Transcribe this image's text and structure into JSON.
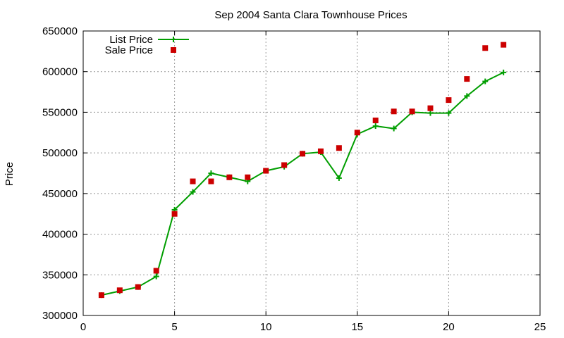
{
  "chart_data": {
    "type": "line",
    "title": "Sep 2004 Santa Clara Townhouse Prices",
    "xlabel": "",
    "ylabel": "Price",
    "xlim": [
      0,
      25
    ],
    "ylim": [
      300000,
      650000
    ],
    "x_ticks": [
      0,
      5,
      10,
      15,
      20,
      25
    ],
    "y_ticks": [
      300000,
      350000,
      400000,
      450000,
      500000,
      550000,
      600000,
      650000
    ],
    "grid": true,
    "legend_position": "top-left",
    "series": [
      {
        "name": "List Price",
        "style": "line+plus",
        "color": "#009e00",
        "x": [
          1,
          2,
          3,
          4,
          5,
          6,
          7,
          8,
          9,
          10,
          11,
          12,
          13,
          14,
          15,
          16,
          17,
          18,
          19,
          20,
          21,
          22,
          23
        ],
        "y": [
          325000,
          330000,
          335000,
          348000,
          430000,
          452000,
          475000,
          470000,
          465000,
          478000,
          483000,
          499000,
          501000,
          469000,
          523000,
          533000,
          530000,
          550000,
          549000,
          549000,
          570000,
          588000,
          599000
        ]
      },
      {
        "name": "Sale Price",
        "style": "square",
        "color": "#cc0000",
        "x": [
          1,
          2,
          3,
          4,
          5,
          6,
          7,
          8,
          9,
          10,
          11,
          12,
          13,
          14,
          15,
          16,
          17,
          18,
          19,
          20,
          21,
          22,
          23
        ],
        "y": [
          325000,
          331000,
          335000,
          355000,
          425000,
          465000,
          465000,
          470000,
          470000,
          478000,
          485000,
          499000,
          502000,
          506000,
          525000,
          540000,
          551000,
          551000,
          555000,
          565000,
          591000,
          629000,
          633000
        ],
        "note_first_point_offset": true
      }
    ]
  }
}
